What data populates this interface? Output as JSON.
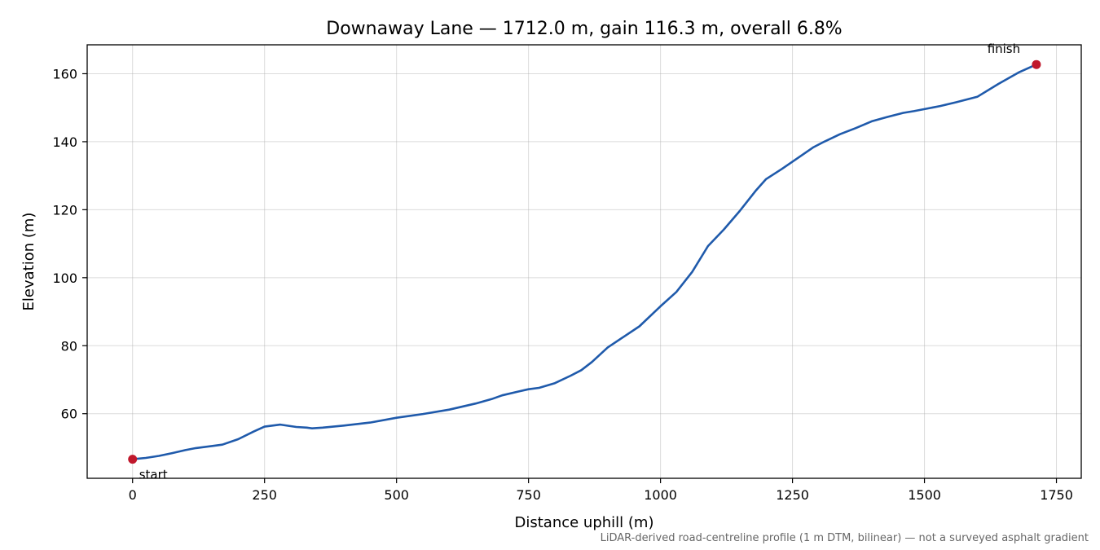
{
  "chart_data": {
    "type": "line",
    "title": "Downaway Lane — 1712.0 m, gain 116.3 m, overall 6.8%",
    "xlabel": "Distance uphill (m)",
    "ylabel": "Elevation (m)",
    "xlim": [
      -86,
      1797
    ],
    "ylim": [
      41,
      168.5
    ],
    "xticks": [
      0,
      250,
      500,
      750,
      1000,
      1250,
      1500,
      1750
    ],
    "yticks": [
      60,
      80,
      100,
      120,
      140,
      160
    ],
    "xtick_labels": [
      "0",
      "250",
      "500",
      "750",
      "1000",
      "1250",
      "1500",
      "1750"
    ],
    "ytick_labels": [
      "60",
      "80",
      "100",
      "120",
      "140",
      "160"
    ],
    "grid": true,
    "line_color": "#1f5aab",
    "marker_color": "#c0182c",
    "series": [
      {
        "x": [
          0,
          25,
          50,
          75,
          100,
          120,
          150,
          170,
          200,
          230,
          250,
          280,
          310,
          330,
          340,
          360,
          400,
          450,
          500,
          550,
          600,
          650,
          680,
          700,
          730,
          750,
          770,
          800,
          830,
          850,
          870,
          900,
          930,
          960,
          1000,
          1030,
          1060,
          1090,
          1120,
          1150,
          1180,
          1200,
          1230,
          1260,
          1290,
          1310,
          1340,
          1370,
          1400,
          1430,
          1460,
          1480,
          1500,
          1530,
          1560,
          1600,
          1640,
          1680,
          1712
        ],
        "values": [
          46.6,
          47.0,
          47.6,
          48.4,
          49.3,
          49.9,
          50.5,
          50.9,
          52.5,
          54.8,
          56.2,
          56.8,
          56.1,
          55.9,
          55.7,
          55.9,
          56.5,
          57.4,
          58.8,
          59.9,
          61.2,
          63.0,
          64.3,
          65.4,
          66.5,
          67.2,
          67.6,
          69.0,
          71.2,
          72.8,
          75.2,
          79.5,
          82.6,
          85.7,
          91.6,
          95.8,
          101.7,
          109.3,
          114.2,
          119.6,
          125.5,
          129.0,
          132.0,
          135.2,
          138.4,
          140.0,
          142.2,
          144.0,
          146.0,
          147.3,
          148.5,
          149.0,
          149.6,
          150.5,
          151.6,
          153.2,
          157.0,
          160.5,
          162.7
        ]
      }
    ],
    "annotations": [
      {
        "text": "start",
        "x": 0,
        "y": 46.6
      },
      {
        "text": "finish",
        "x": 1712,
        "y": 162.7
      }
    ],
    "footnote": "LiDAR-derived road-centreline profile (1 m DTM, bilinear) — not a surveyed asphalt gradient"
  }
}
